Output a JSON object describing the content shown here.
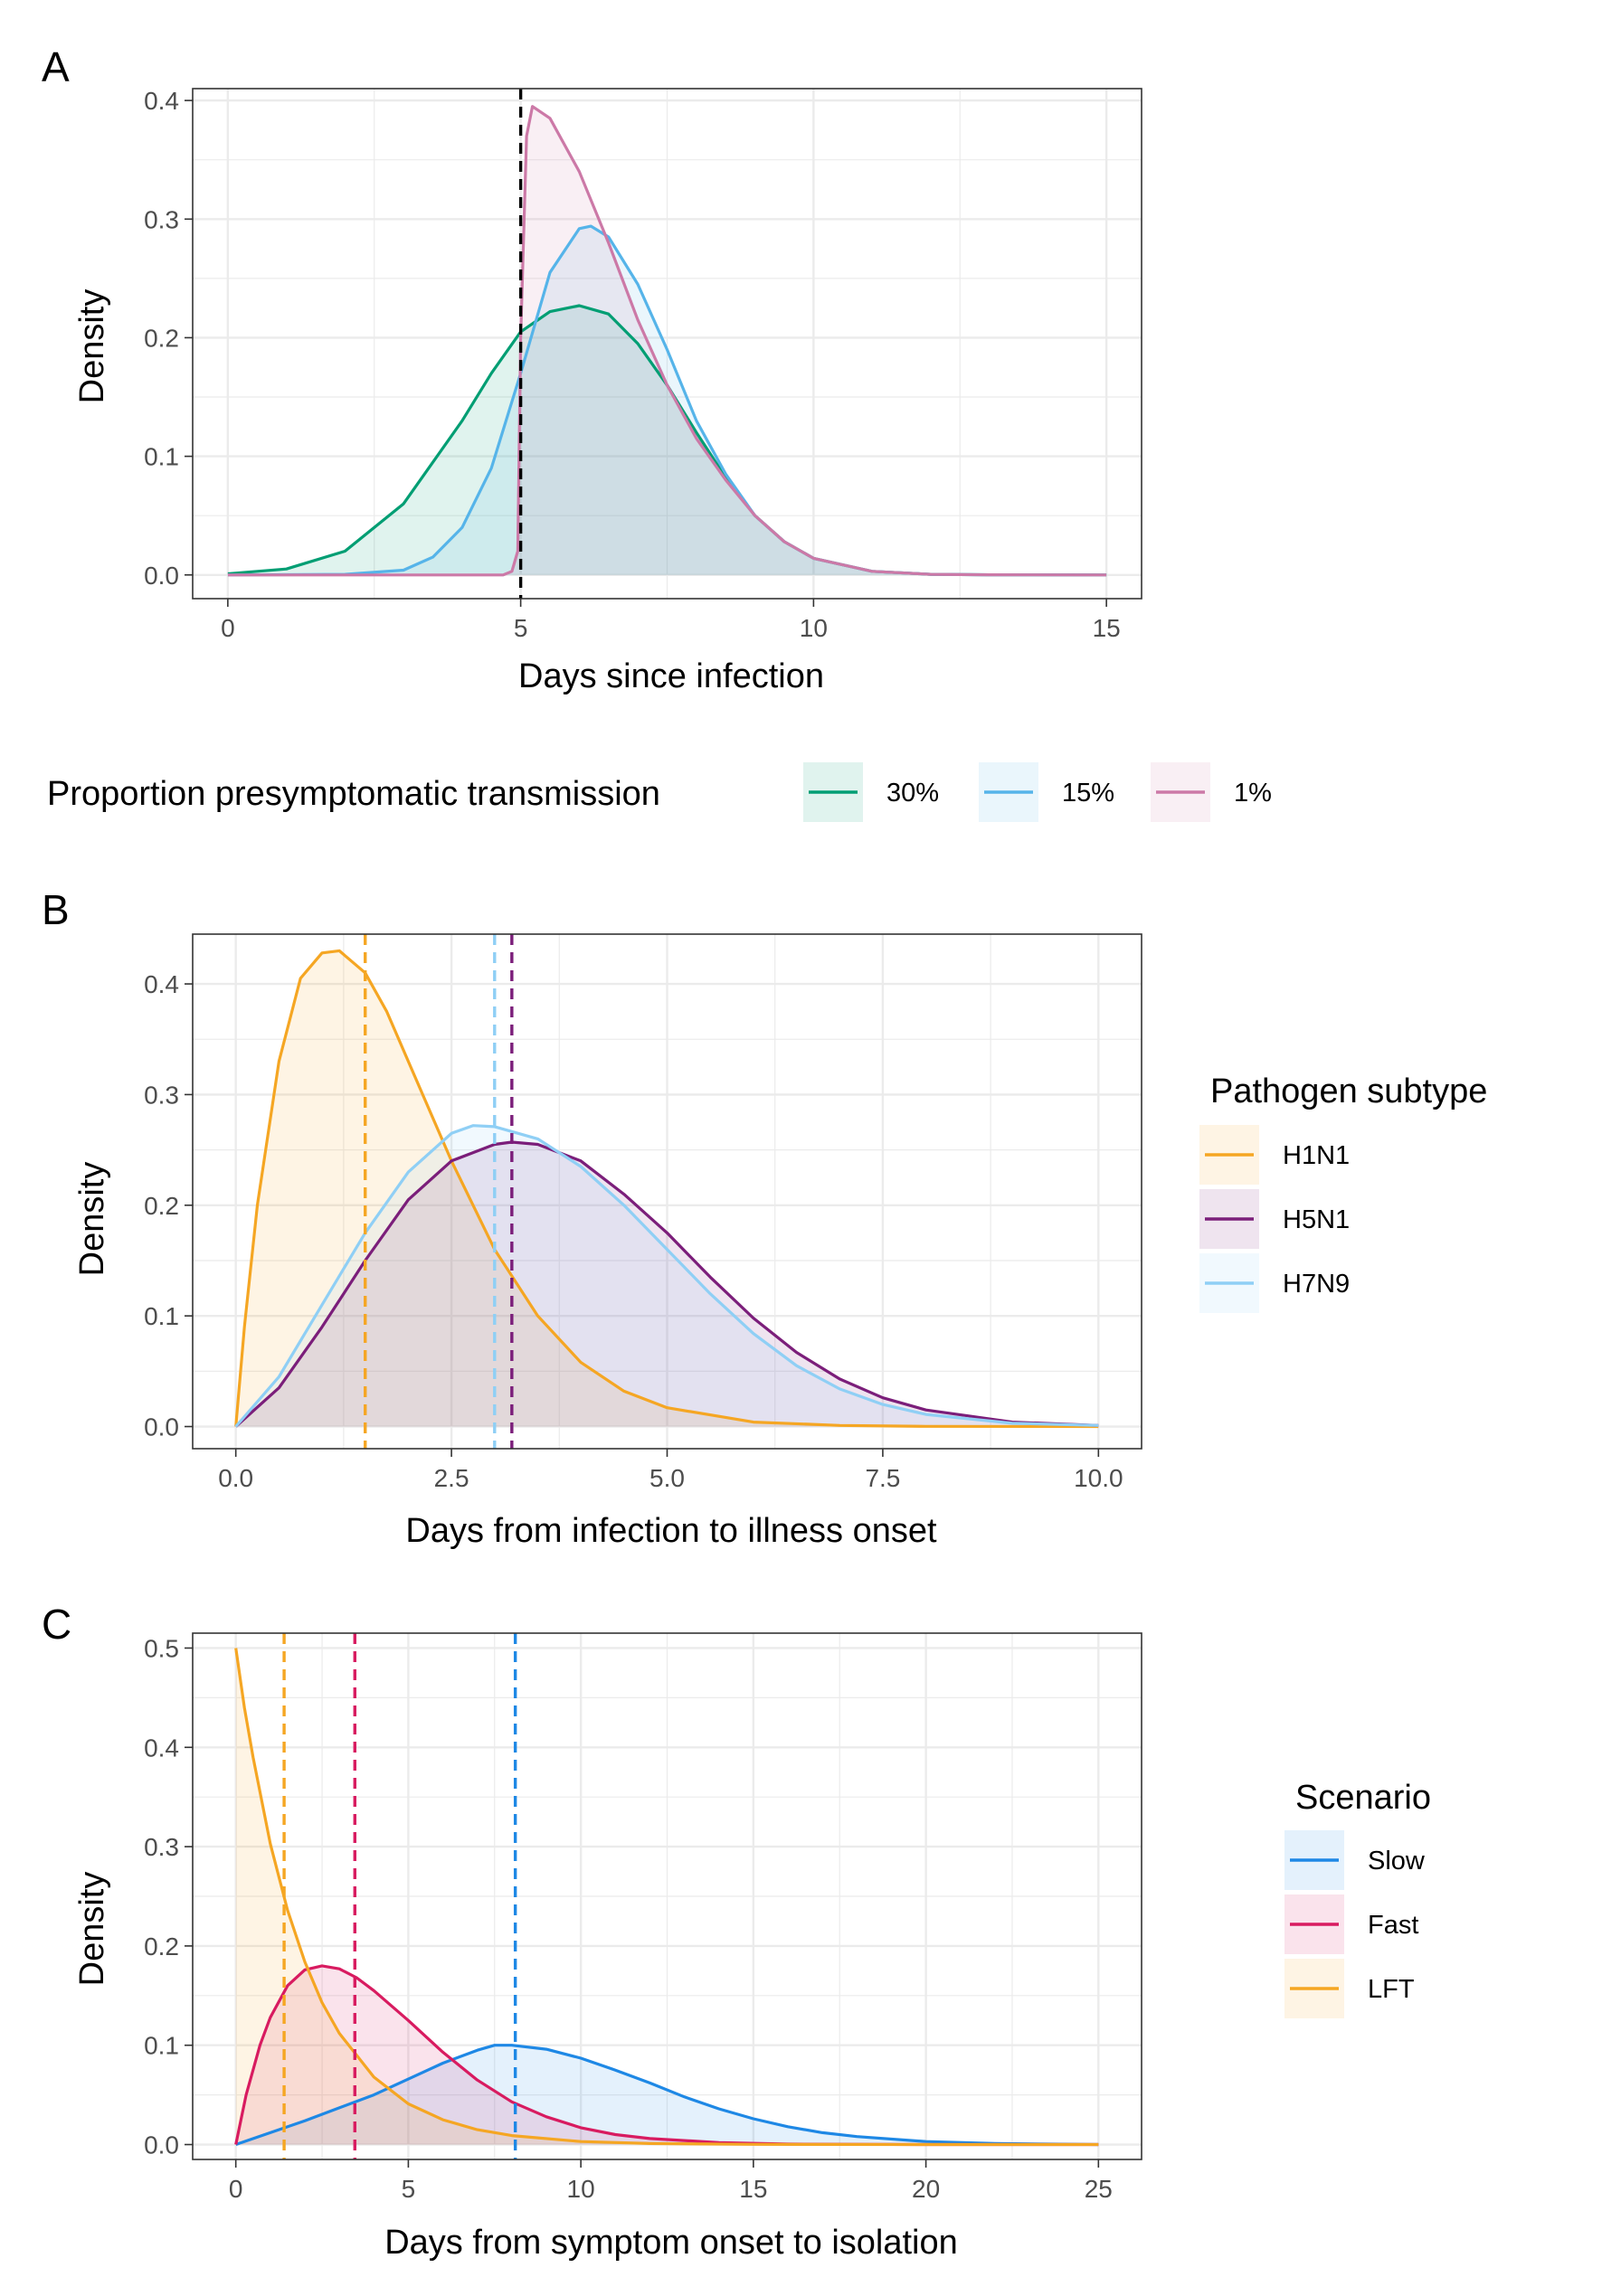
{
  "chart_data": [
    {
      "panel": "A",
      "type": "area",
      "xlabel": "Days since infection",
      "ylabel": "Density",
      "xlim": [
        -0.6,
        15.6
      ],
      "ylim": [
        -0.02,
        0.41
      ],
      "x_ticks": [
        0,
        5,
        10,
        15
      ],
      "x_tick_labels": [
        "0",
        "5",
        "10",
        "15"
      ],
      "y_ticks": [
        0,
        0.1,
        0.2,
        0.3,
        0.4
      ],
      "y_tick_labels": [
        "0.0",
        "0.1",
        "0.2",
        "0.3",
        "0.4"
      ],
      "grid": true,
      "legend": {
        "title": "Proportion presymptomatic transmission",
        "placement": "bottom",
        "entries": [
          "30%",
          "15%",
          "1%"
        ]
      },
      "vlines": [
        {
          "x": 5,
          "color": "#000000"
        }
      ],
      "series": [
        {
          "name": "30%",
          "color": "#009E73",
          "x": [
            0,
            1,
            2,
            3,
            4,
            4.5,
            5,
            5.5,
            6,
            6.5,
            7,
            7.5,
            8,
            8.5,
            9,
            9.5,
            10,
            11,
            12,
            13,
            15
          ],
          "y": [
            0.001,
            0.005,
            0.02,
            0.06,
            0.13,
            0.17,
            0.205,
            0.222,
            0.227,
            0.22,
            0.195,
            0.16,
            0.12,
            0.082,
            0.05,
            0.028,
            0.014,
            0.003,
            0.0005,
            0.0001,
            0
          ]
        },
        {
          "name": "15%",
          "color": "#56B4E9",
          "x": [
            0,
            2,
            3,
            3.5,
            4,
            4.5,
            5,
            5.5,
            6,
            6.2,
            6.5,
            7,
            7.5,
            8,
            8.5,
            9,
            9.5,
            10,
            11,
            12,
            13,
            15
          ],
          "y": [
            0,
            0.0005,
            0.004,
            0.015,
            0.04,
            0.09,
            0.17,
            0.255,
            0.292,
            0.294,
            0.285,
            0.245,
            0.19,
            0.13,
            0.085,
            0.05,
            0.028,
            0.014,
            0.003,
            0.0005,
            0.0001,
            0
          ]
        },
        {
          "name": "1%",
          "color": "#CC79A7",
          "x": [
            0,
            4.7,
            4.85,
            4.95,
            5,
            5.1,
            5.2,
            5.5,
            6,
            6.5,
            7,
            7.5,
            8,
            8.5,
            9,
            9.5,
            10,
            11,
            12,
            13,
            15
          ],
          "y": [
            0,
            0,
            0.003,
            0.02,
            0.2,
            0.37,
            0.395,
            0.385,
            0.34,
            0.28,
            0.215,
            0.16,
            0.115,
            0.08,
            0.05,
            0.028,
            0.014,
            0.003,
            0.0005,
            0.0001,
            0
          ]
        }
      ]
    },
    {
      "panel": "B",
      "type": "area",
      "xlabel": "Days from infection to illness onset",
      "ylabel": "Density",
      "xlim": [
        -0.5,
        10.5
      ],
      "ylim": [
        -0.02,
        0.445
      ],
      "x_ticks": [
        0,
        2.5,
        5,
        7.5,
        10
      ],
      "x_tick_labels": [
        "0.0",
        "2.5",
        "5.0",
        "7.5",
        "10.0"
      ],
      "y_ticks": [
        0,
        0.1,
        0.2,
        0.3,
        0.4
      ],
      "y_tick_labels": [
        "0.0",
        "0.1",
        "0.2",
        "0.3",
        "0.4"
      ],
      "grid": true,
      "legend": {
        "title": "Pathogen subtype",
        "placement": "right",
        "entries": [
          "H1N1",
          "H5N1",
          "H7N9"
        ]
      },
      "vlines": [
        {
          "x": 1.5,
          "color": "#F5A623"
        },
        {
          "x": 3.0,
          "color": "#8FCFF5"
        },
        {
          "x": 3.2,
          "color": "#7B1E7A"
        }
      ],
      "series": [
        {
          "name": "H1N1",
          "color": "#F5A623",
          "x": [
            0,
            0.1,
            0.25,
            0.5,
            0.75,
            1.0,
            1.2,
            1.5,
            1.75,
            2.0,
            2.5,
            3.0,
            3.5,
            4.0,
            4.5,
            5.0,
            6.0,
            7.0,
            8.0,
            10.0
          ],
          "y": [
            0,
            0.09,
            0.2,
            0.33,
            0.405,
            0.428,
            0.43,
            0.41,
            0.375,
            0.33,
            0.24,
            0.16,
            0.1,
            0.058,
            0.032,
            0.017,
            0.004,
            0.001,
            0.0002,
            0
          ]
        },
        {
          "name": "H5N1",
          "color": "#7B1E7A",
          "x": [
            0,
            0.5,
            1.0,
            1.5,
            2.0,
            2.5,
            3.0,
            3.2,
            3.5,
            4.0,
            4.5,
            5.0,
            5.5,
            6.0,
            6.5,
            7.0,
            7.5,
            8.0,
            9.0,
            10.0
          ],
          "y": [
            0,
            0.035,
            0.09,
            0.15,
            0.205,
            0.24,
            0.255,
            0.257,
            0.255,
            0.24,
            0.21,
            0.175,
            0.135,
            0.098,
            0.067,
            0.043,
            0.026,
            0.015,
            0.004,
            0.001
          ]
        },
        {
          "name": "H7N9",
          "color": "#8FCFF5",
          "x": [
            0,
            0.5,
            1.0,
            1.5,
            2.0,
            2.5,
            2.75,
            3.0,
            3.5,
            4.0,
            4.5,
            5.0,
            5.5,
            6.0,
            6.5,
            7.0,
            7.5,
            8.0,
            9.0,
            10.0
          ],
          "y": [
            0,
            0.045,
            0.11,
            0.175,
            0.23,
            0.265,
            0.272,
            0.271,
            0.26,
            0.235,
            0.2,
            0.16,
            0.12,
            0.084,
            0.055,
            0.034,
            0.02,
            0.011,
            0.003,
            0.001
          ]
        }
      ]
    },
    {
      "panel": "C",
      "type": "area",
      "xlabel": "Days from symptom onset to isolation",
      "ylabel": "Density",
      "xlim": [
        -1.25,
        26.25
      ],
      "ylim": [
        -0.015,
        0.515
      ],
      "x_ticks": [
        0,
        5,
        10,
        15,
        20,
        25
      ],
      "x_tick_labels": [
        "0",
        "5",
        "10",
        "15",
        "20",
        "25"
      ],
      "y_ticks": [
        0,
        0.1,
        0.2,
        0.3,
        0.4,
        0.5
      ],
      "y_tick_labels": [
        "0.0",
        "0.1",
        "0.2",
        "0.3",
        "0.4",
        "0.5"
      ],
      "grid": true,
      "legend": {
        "title": "Scenario",
        "placement": "right",
        "entries": [
          "Slow",
          "Fast",
          "LFT"
        ]
      },
      "vlines": [
        {
          "x": 1.4,
          "color": "#F5A623"
        },
        {
          "x": 3.45,
          "color": "#D81B60"
        },
        {
          "x": 8.1,
          "color": "#1E88E5"
        }
      ],
      "series": [
        {
          "name": "Slow",
          "color": "#1E88E5",
          "x": [
            0,
            1,
            2,
            3,
            4,
            5,
            6,
            7,
            7.5,
            8,
            9,
            10,
            11,
            12,
            13,
            14,
            15,
            16,
            17,
            18,
            20,
            22,
            25
          ],
          "y": [
            0,
            0.012,
            0.024,
            0.037,
            0.05,
            0.066,
            0.082,
            0.095,
            0.1,
            0.1,
            0.096,
            0.087,
            0.075,
            0.062,
            0.048,
            0.036,
            0.026,
            0.018,
            0.012,
            0.008,
            0.003,
            0.001,
            0
          ]
        },
        {
          "name": "Fast",
          "color": "#D81B60",
          "x": [
            0,
            0.3,
            0.7,
            1.0,
            1.5,
            2.0,
            2.5,
            3.0,
            3.5,
            4,
            5,
            6,
            7,
            8,
            9,
            10,
            11,
            12,
            14,
            16,
            20,
            25
          ],
          "y": [
            0,
            0.05,
            0.1,
            0.128,
            0.16,
            0.176,
            0.18,
            0.177,
            0.168,
            0.155,
            0.125,
            0.093,
            0.065,
            0.043,
            0.028,
            0.017,
            0.01,
            0.006,
            0.002,
            0.0005,
            0,
            0
          ]
        },
        {
          "name": "LFT",
          "color": "#F5A623",
          "x": [
            0,
            0.25,
            0.5,
            1,
            1.5,
            2,
            2.5,
            3,
            4,
            5,
            6,
            7,
            8,
            10,
            12,
            15,
            20,
            25
          ],
          "y": [
            0.5,
            0.44,
            0.39,
            0.303,
            0.236,
            0.184,
            0.143,
            0.112,
            0.068,
            0.041,
            0.025,
            0.015,
            0.009,
            0.003,
            0.001,
            0.0002,
            0,
            0
          ]
        }
      ]
    }
  ],
  "panel_letters": [
    "A",
    "B",
    "C"
  ]
}
